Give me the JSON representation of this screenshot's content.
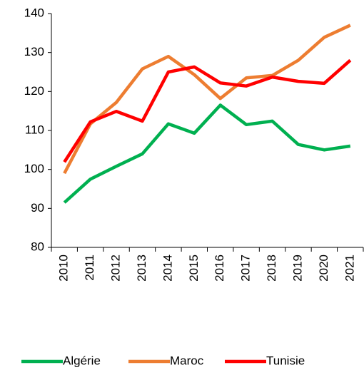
{
  "chart_data": {
    "type": "line",
    "categories": [
      "2010",
      "2011",
      "2012",
      "2013",
      "2014",
      "2015",
      "2016",
      "2017",
      "2018",
      "2019",
      "2020",
      "2021"
    ],
    "series": [
      {
        "name": "Algérie",
        "color": "#00b050",
        "values": [
          91.5,
          97.5,
          100.8,
          104,
          111.7,
          109.3,
          116.5,
          111.5,
          112.4,
          106.4,
          105,
          106
        ]
      },
      {
        "name": "Maroc",
        "color": "#ed7d31",
        "values": [
          99,
          111.7,
          117.2,
          125.8,
          129,
          124.3,
          118.2,
          123.5,
          124.1,
          128,
          133.9,
          137
        ]
      },
      {
        "name": "Tunisie",
        "color": "#ff0000",
        "values": [
          101.9,
          112.2,
          114.9,
          112.4,
          125,
          126.3,
          122.2,
          121.4,
          123.7,
          122.6,
          122.1,
          128
        ]
      }
    ],
    "ylim": [
      80,
      140
    ],
    "yticks": [
      80,
      90,
      100,
      110,
      120,
      130,
      140
    ],
    "grid": false,
    "legend": "bottom"
  }
}
